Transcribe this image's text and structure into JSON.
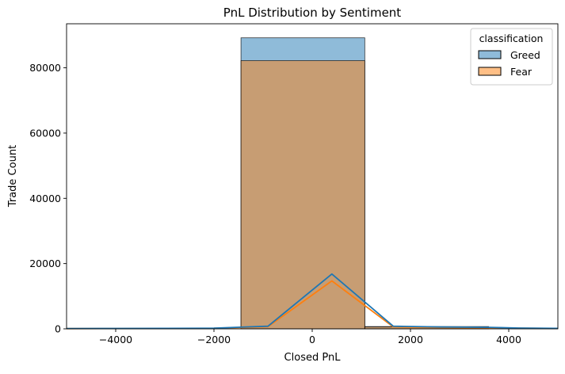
{
  "chart_data": {
    "type": "histogram",
    "title": "PnL Distribution by Sentiment",
    "xlabel": "Closed PnL",
    "ylabel": "Trade Count",
    "xlim": [
      -5000,
      5000
    ],
    "ylim": [
      0,
      93500
    ],
    "xticks": [
      -4000,
      -2000,
      0,
      2000,
      4000
    ],
    "xtick_labels": [
      "−4000",
      "−2000",
      "0",
      "2000",
      "4000"
    ],
    "yticks": [
      0,
      20000,
      40000,
      60000,
      80000
    ],
    "ytick_labels": [
      "0",
      "20000",
      "40000",
      "60000",
      "80000"
    ],
    "grid": false,
    "legend": {
      "title": "classification",
      "position": "top-right"
    },
    "series": [
      {
        "name": "Greed",
        "color": "#1f77b4",
        "bins": [
          {
            "x0": -1450,
            "x1": 1070,
            "count": 89200
          },
          {
            "x0": 1070,
            "x1": 3590,
            "count": 700
          }
        ],
        "kde": [
          {
            "x": -5000,
            "y": 100
          },
          {
            "x": -4000,
            "y": 120
          },
          {
            "x": -3000,
            "y": 150
          },
          {
            "x": -2000,
            "y": 200
          },
          {
            "x": -1450,
            "y": 500
          },
          {
            "x": -900,
            "y": 800
          },
          {
            "x": 400,
            "y": 16800
          },
          {
            "x": 1650,
            "y": 800
          },
          {
            "x": 2600,
            "y": 550
          },
          {
            "x": 3600,
            "y": 450
          },
          {
            "x": 4200,
            "y": 250
          },
          {
            "x": 5000,
            "y": 150
          }
        ]
      },
      {
        "name": "Fear",
        "color": "#ff7f0e",
        "bins": [
          {
            "x0": -1450,
            "x1": 1070,
            "count": 82200
          },
          {
            "x0": 1070,
            "x1": 3590,
            "count": 600
          }
        ],
        "kde": [
          {
            "x": -5000,
            "y": 80
          },
          {
            "x": -4000,
            "y": 100
          },
          {
            "x": -3000,
            "y": 120
          },
          {
            "x": -2000,
            "y": 170
          },
          {
            "x": -1450,
            "y": 400
          },
          {
            "x": -900,
            "y": 650
          },
          {
            "x": 400,
            "y": 14700
          },
          {
            "x": 1650,
            "y": 600
          },
          {
            "x": 2600,
            "y": 400
          },
          {
            "x": 3600,
            "y": 300
          },
          {
            "x": 4200,
            "y": 200
          },
          {
            "x": 5000,
            "y": 120
          }
        ]
      }
    ]
  }
}
